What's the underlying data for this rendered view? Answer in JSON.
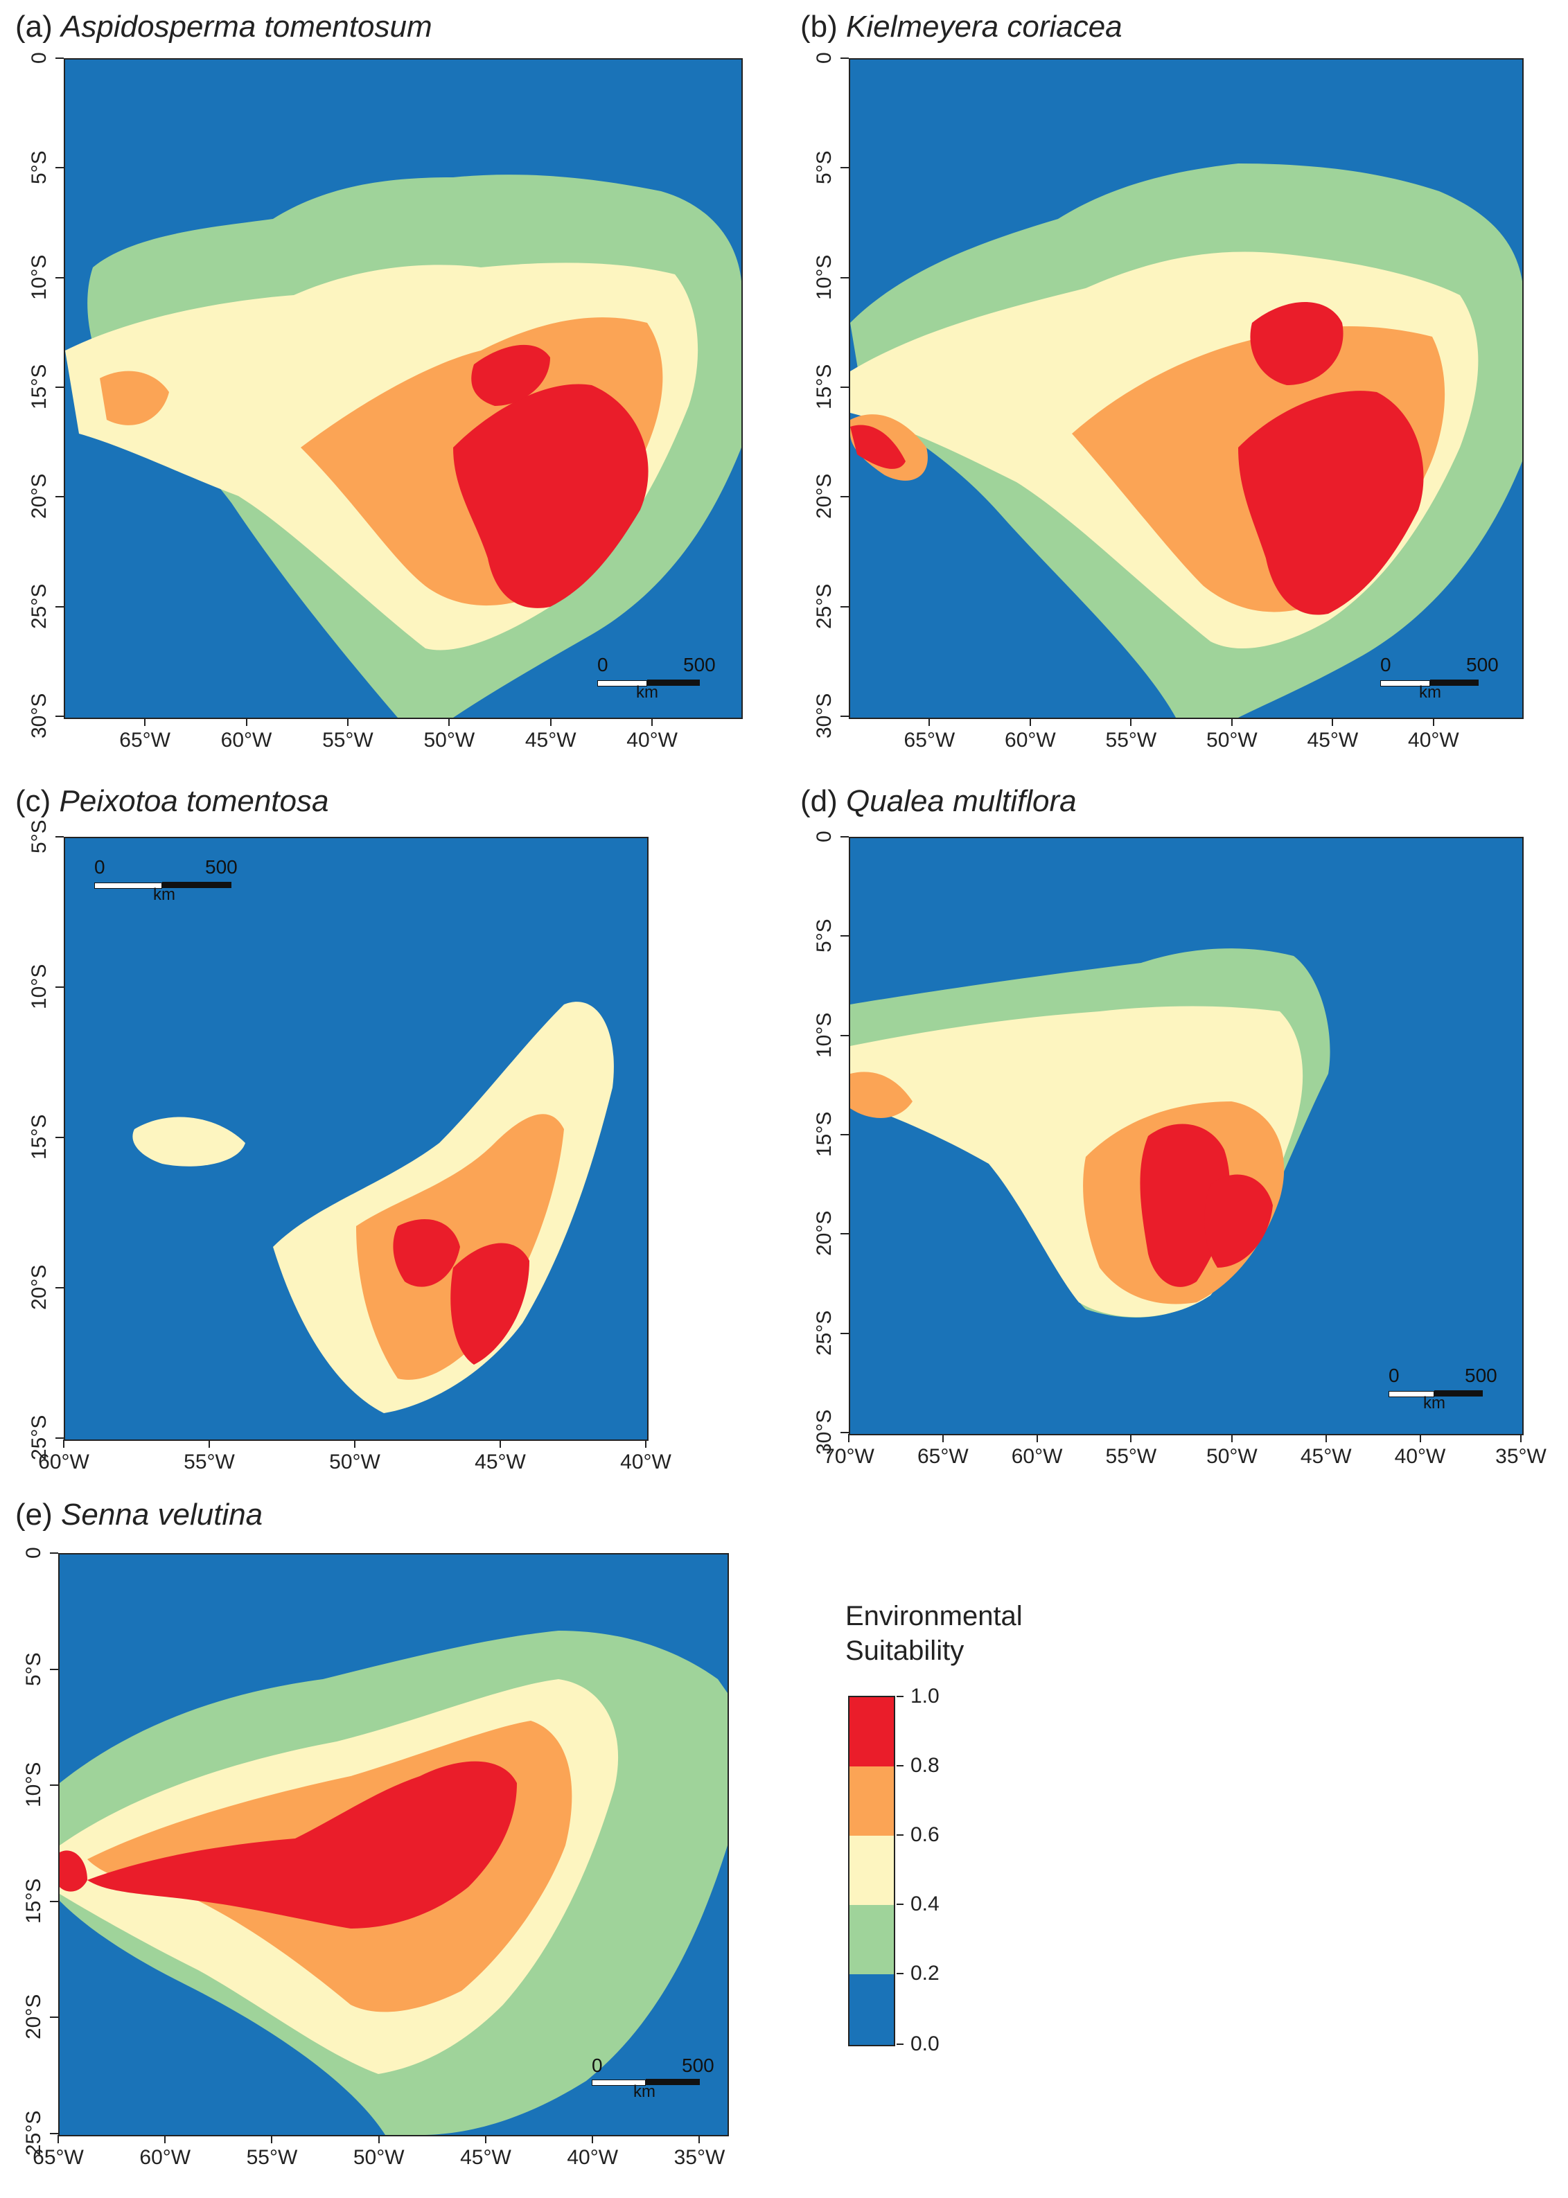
{
  "colors": {
    "class_0_0_2": "#1a73b8",
    "class_0_2_0_4": "#9fd39a",
    "class_0_4_0_6": "#fdf5c0",
    "class_0_6_0_8": "#fba455",
    "class_0_8_1_0": "#ea1d2a",
    "occurrence_dot": "#3a3a9a",
    "country_border": "#6ec6e8"
  },
  "panels": [
    {
      "letter": "(a)",
      "species": "Aspidosperma tomentosum",
      "y_ticks": [
        "0",
        "5°S",
        "10°S",
        "15°S",
        "20°S",
        "25°S",
        "30°S"
      ],
      "x_ticks": [
        "65°W",
        "60°W",
        "55°W",
        "50°W",
        "45°W",
        "40°W"
      ],
      "scalebar": {
        "start": "0",
        "end": "500",
        "unit": "km"
      }
    },
    {
      "letter": "(b)",
      "species": "Kielmeyera coriacea",
      "y_ticks": [
        "0",
        "5°S",
        "10°S",
        "15°S",
        "20°S",
        "25°S",
        "30°S"
      ],
      "x_ticks": [
        "65°W",
        "60°W",
        "55°W",
        "50°W",
        "45°W",
        "40°W"
      ],
      "scalebar": {
        "start": "0",
        "end": "500",
        "unit": "km"
      }
    },
    {
      "letter": "(c)",
      "species": "Peixotoa tomentosa",
      "y_ticks": [
        "5°S",
        "10°S",
        "15°S",
        "20°S",
        "25°S"
      ],
      "x_ticks": [
        "60°W",
        "55°W",
        "50°W",
        "45°W",
        "40°W"
      ],
      "scalebar": {
        "start": "0",
        "end": "500",
        "unit": "km"
      }
    },
    {
      "letter": "(d)",
      "species": "Qualea multiflora",
      "y_ticks": [
        "0",
        "5°S",
        "10°S",
        "15°S",
        "20°S",
        "25°S",
        "30°S"
      ],
      "x_ticks": [
        "70°W",
        "65°W",
        "60°W",
        "55°W",
        "50°W",
        "45°W",
        "40°W",
        "35°W"
      ],
      "scalebar": {
        "start": "0",
        "end": "500",
        "unit": "km"
      }
    },
    {
      "letter": "(e)",
      "species": "Senna velutina",
      "y_ticks": [
        "0",
        "5°S",
        "10°S",
        "15°S",
        "20°S",
        "25°S"
      ],
      "x_ticks": [
        "65°W",
        "60°W",
        "55°W",
        "50°W",
        "45°W",
        "40°W",
        "35°W"
      ],
      "scalebar": {
        "start": "0",
        "end": "500",
        "unit": "km"
      }
    }
  ],
  "legend": {
    "title_line1": "Environmental",
    "title_line2": "Suitability",
    "labels": [
      "1.0",
      "0.8",
      "0.6",
      "0.4",
      "0.2",
      "0.0"
    ]
  }
}
